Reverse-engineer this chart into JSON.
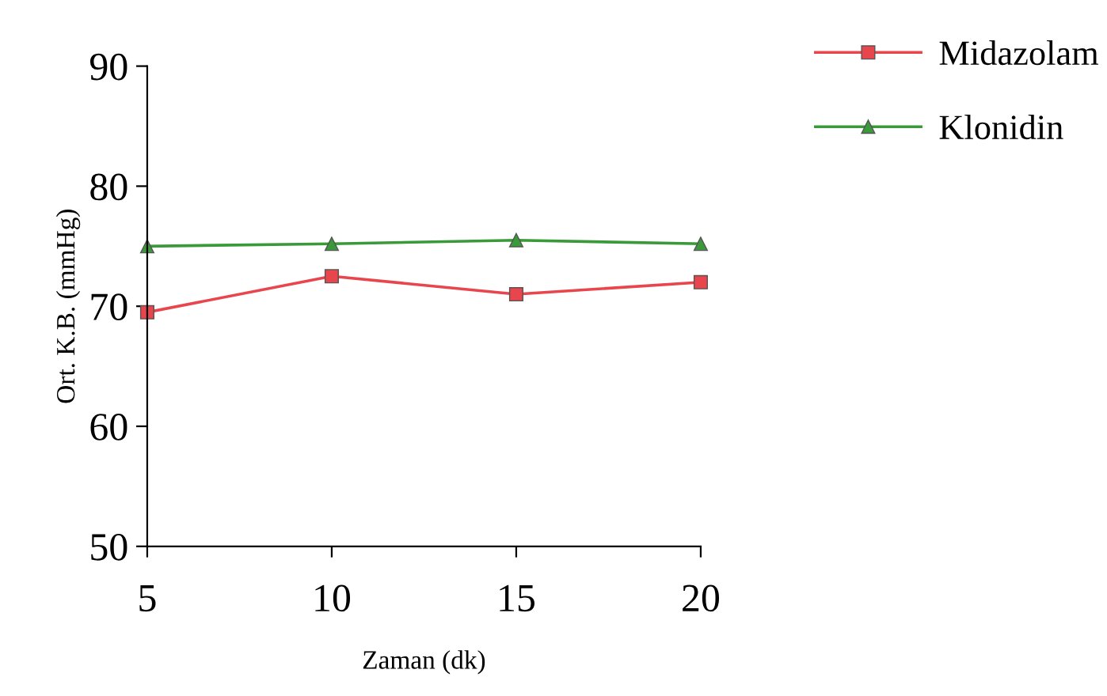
{
  "chart_data": {
    "type": "line",
    "xlabel": "Zaman (dk)",
    "ylabel": "Ort. K.B. (mmHg)",
    "x": [
      5,
      10,
      15,
      20
    ],
    "series": [
      {
        "name": "Midazolam",
        "color": "#e8454d",
        "marker": "square",
        "values": [
          69.5,
          72.5,
          71,
          72
        ]
      },
      {
        "name": "Klonidin",
        "color": "#3a9a3a",
        "marker": "triangle",
        "values": [
          75,
          75.2,
          75.5,
          75.2
        ]
      }
    ],
    "xlim": [
      5,
      20
    ],
    "xticks": [
      5,
      10,
      15,
      20
    ],
    "ylim": [
      50,
      90
    ],
    "yticks": [
      50,
      60,
      70,
      80,
      90
    ],
    "grid": false,
    "legend": "top right",
    "line_style": "solid"
  }
}
